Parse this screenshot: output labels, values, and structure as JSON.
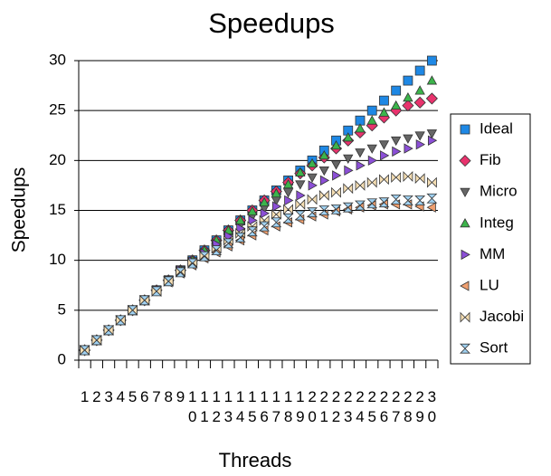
{
  "chart_data": {
    "type": "line",
    "title": "Speedups",
    "x_label": "Threads",
    "y_label": "Speedups",
    "categories": [
      "1",
      "2",
      "3",
      "4",
      "5",
      "6",
      "7",
      "8",
      "9",
      "10",
      "11",
      "12",
      "13",
      "14",
      "15",
      "16",
      "17",
      "18",
      "19",
      "20",
      "21",
      "22",
      "23",
      "24",
      "25",
      "26",
      "27",
      "28",
      "29",
      "30"
    ],
    "ylim": [
      0,
      30
    ],
    "yticks": [
      0,
      5,
      10,
      15,
      20,
      25,
      30
    ],
    "grid": true,
    "legend": "right",
    "series": [
      {
        "name": "Ideal",
        "color": "#1e88e5",
        "marker": "square",
        "values": [
          1,
          2,
          3,
          4,
          5,
          6,
          7,
          8,
          9,
          10,
          11,
          12,
          13,
          14,
          15,
          16,
          17,
          18,
          19,
          20,
          21,
          22,
          23,
          24,
          25,
          26,
          27,
          28,
          29,
          30
        ]
      },
      {
        "name": "Fib",
        "color": "#e8336d",
        "marker": "diamond",
        "values": [
          1,
          2,
          3,
          4,
          5,
          6,
          7,
          8,
          9,
          10,
          11,
          12,
          13,
          14,
          15,
          16,
          16.9,
          17.8,
          18.7,
          19.5,
          20.3,
          21.2,
          22,
          22.8,
          23.5,
          24.3,
          25,
          25.5,
          25.8,
          26.2
        ]
      },
      {
        "name": "Micro",
        "color": "#666666",
        "marker": "down",
        "values": [
          1,
          2,
          3,
          4,
          5,
          6,
          7,
          8,
          9,
          9.9,
          10.8,
          11.7,
          12.6,
          13.5,
          14.4,
          15.2,
          16,
          16.8,
          17.6,
          18.3,
          19,
          19.6,
          20.2,
          20.8,
          21.2,
          21.6,
          22,
          22.2,
          22.5,
          22.7
        ]
      },
      {
        "name": "Integ",
        "color": "#3cb44b",
        "marker": "up",
        "values": [
          1,
          2,
          3,
          4,
          5,
          6,
          7,
          8,
          9,
          10,
          11,
          12,
          13,
          14,
          14.9,
          15.8,
          16.7,
          17.6,
          18.8,
          19.7,
          20.5,
          21.5,
          22.3,
          23.2,
          24,
          24.8,
          25.5,
          26.3,
          27,
          28
        ]
      },
      {
        "name": "MM",
        "color": "#8b4fd6",
        "marker": "right",
        "values": [
          1,
          2,
          3,
          4,
          5,
          6,
          7,
          8,
          9,
          9.9,
          10.7,
          11.6,
          12.4,
          13.2,
          14,
          14.7,
          15.4,
          16,
          16.5,
          17.5,
          18,
          18.5,
          19,
          19.5,
          20,
          20.5,
          20.9,
          21.2,
          21.6,
          22
        ]
      },
      {
        "name": "LU",
        "color": "#f0a070",
        "marker": "left",
        "values": [
          1,
          2,
          3,
          4,
          5,
          6,
          6.9,
          7.8,
          8.7,
          9.5,
          10.2,
          10.8,
          11.4,
          12,
          12.5,
          13,
          13.4,
          13.8,
          14.1,
          14.4,
          14.6,
          14.9,
          15.1,
          15.3,
          15.5,
          15.6,
          15.6,
          15.6,
          15.4,
          15.3
        ]
      },
      {
        "name": "Jacobi",
        "color": "#f5deb3",
        "marker": "bowtie",
        "values": [
          1,
          2,
          3,
          4,
          5,
          6,
          6.9,
          7.9,
          8.9,
          9.8,
          10.5,
          11.2,
          12,
          12.7,
          13.4,
          14,
          14.6,
          15.1,
          15.6,
          16.1,
          16.5,
          16.8,
          17.2,
          17.5,
          17.8,
          18.1,
          18.3,
          18.4,
          18.2,
          17.8
        ]
      },
      {
        "name": "Sort",
        "color": "#9fd0f0",
        "marker": "hourglass",
        "values": [
          1,
          2,
          3,
          4,
          5,
          6,
          6.9,
          7.9,
          8.8,
          9.7,
          10.4,
          11,
          11.7,
          12.3,
          12.9,
          13.4,
          13.8,
          14.2,
          14.5,
          14.8,
          15,
          15.1,
          15.3,
          15.5,
          15.7,
          15.8,
          16.1,
          16,
          16,
          16.2
        ]
      }
    ]
  }
}
